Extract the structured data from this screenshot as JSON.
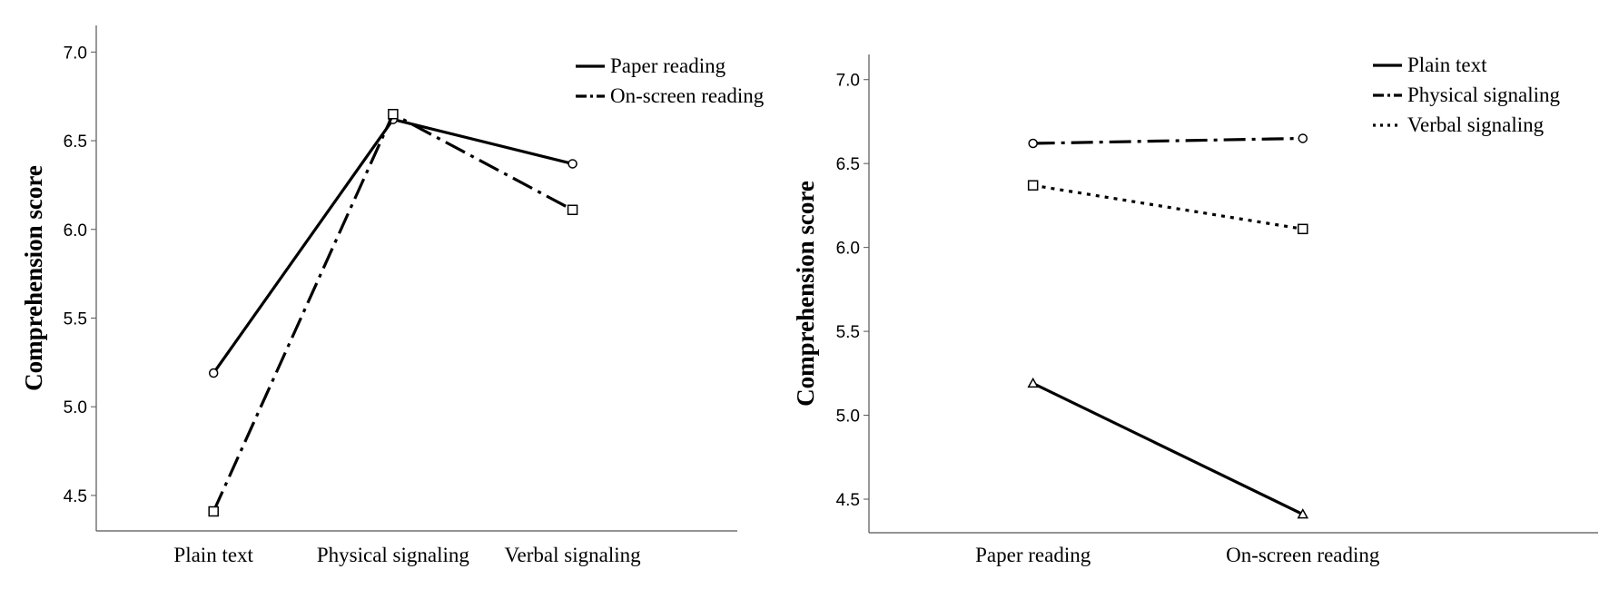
{
  "chart_data": [
    {
      "type": "line",
      "categories": [
        "Plain text",
        "Physical signaling",
        "Verbal signaling"
      ],
      "ylabel": "Comprehension score",
      "xlabel": "",
      "ylim": [
        4.3,
        7.15
      ],
      "yticks": [
        "4.5",
        "5.0",
        "5.5",
        "6.0",
        "6.5",
        "7.0"
      ],
      "legend_position": "top-right",
      "grid": false,
      "series": [
        {
          "name": "Paper reading",
          "style": "solid",
          "marker": "circle",
          "values": [
            5.19,
            6.62,
            6.37
          ]
        },
        {
          "name": "On-screen reading",
          "style": "dashdot",
          "marker": "square",
          "values": [
            4.41,
            6.65,
            6.11
          ]
        }
      ]
    },
    {
      "type": "line",
      "categories": [
        "Paper reading",
        "On-screen reading"
      ],
      "ylabel": "Comprehension score",
      "xlabel": "",
      "ylim": [
        4.3,
        7.15
      ],
      "yticks": [
        "4.5",
        "5.0",
        "5.5",
        "6.0",
        "6.5",
        "7.0"
      ],
      "legend_position": "top-right",
      "grid": false,
      "series": [
        {
          "name": "Plain text",
          "style": "solid",
          "marker": "triangle",
          "values": [
            5.19,
            4.41
          ]
        },
        {
          "name": "Physical signaling",
          "style": "dashdot",
          "marker": "circle",
          "values": [
            6.62,
            6.65
          ]
        },
        {
          "name": "Verbal signaling",
          "style": "dotted",
          "marker": "square",
          "values": [
            6.37,
            6.11
          ]
        }
      ]
    }
  ]
}
